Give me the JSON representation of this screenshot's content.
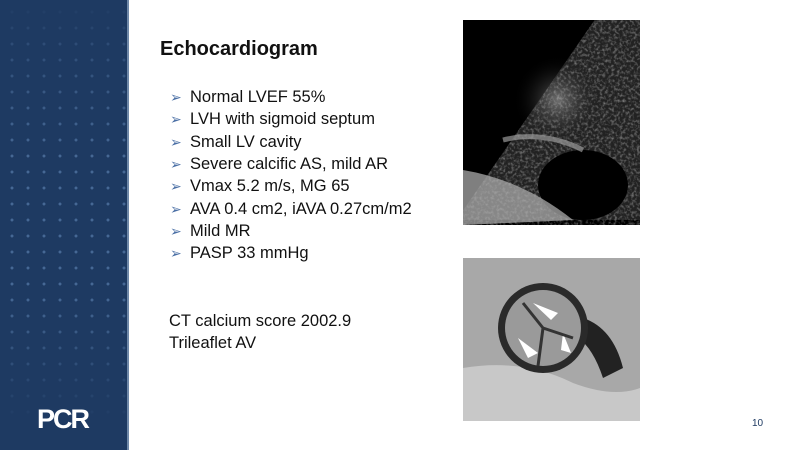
{
  "branding": {
    "logo_text": "PCR",
    "sidebar_color": "#1e3a62"
  },
  "slide": {
    "title": "Echocardiogram",
    "bullets": [
      "Normal LVEF 55%",
      "LVH with sigmoid septum",
      "Small LV cavity",
      "Severe calcific AS, mild AR",
      "Vmax 5.2 m/s, MG 65",
      "AVA 0.4 cm2, iAVA 0.27cm/m2",
      "Mild MR",
      "PASP 33 mmHg"
    ],
    "bullet_icon": "arrowhead-icon",
    "ct_lines": [
      "CT calcium score 2002.9",
      "Trileaflet AV"
    ],
    "page_number": "10"
  },
  "images": {
    "echo": "echocardiogram-image",
    "ct": "ct-aortic-valve-image"
  }
}
